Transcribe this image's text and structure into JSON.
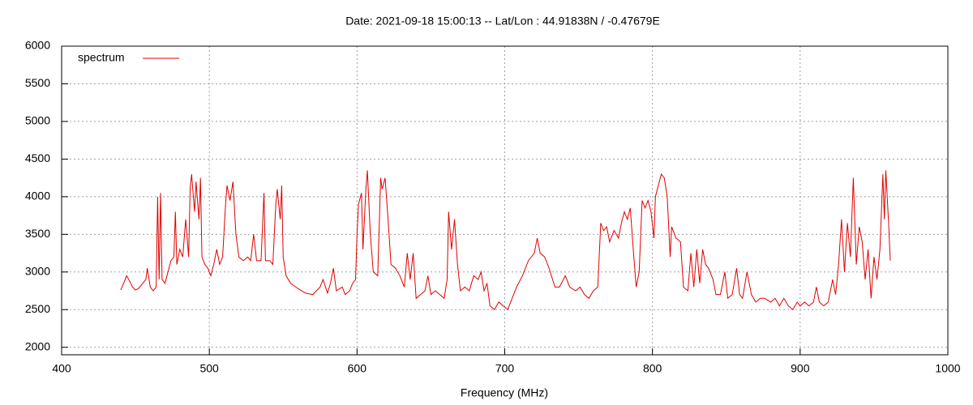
{
  "chart_data": {
    "type": "line",
    "title": "Date: 2021-09-18 15:00:13  --  Lat/Lon : 44.91838N / -0.47679E",
    "xlabel": "Frequency (MHz)",
    "xlim": [
      400,
      1000
    ],
    "xticks": [
      400,
      500,
      600,
      700,
      800,
      900,
      1000
    ],
    "ylim": [
      1900,
      6000
    ],
    "yticks": [
      2000,
      2500,
      3000,
      3500,
      4000,
      4500,
      5000,
      5500,
      6000
    ],
    "grid": true,
    "legend": "upper-left",
    "x": [
      440,
      442,
      444,
      446,
      448,
      450,
      452,
      455,
      457,
      458,
      460,
      462,
      464,
      465,
      466,
      467,
      468,
      470,
      472,
      474,
      476,
      477,
      478,
      480,
      482,
      484,
      486,
      487,
      488,
      490,
      491,
      493,
      494,
      495,
      497,
      499,
      501,
      503,
      505,
      507,
      509,
      511,
      512,
      514,
      516,
      518,
      520,
      523,
      526,
      528,
      530,
      532,
      535,
      537,
      538,
      541,
      543,
      545,
      546,
      548,
      549,
      550,
      552,
      555,
      560,
      565,
      570,
      575,
      577,
      580,
      582,
      584,
      586,
      590,
      592,
      595,
      597,
      599,
      600,
      601,
      603,
      604,
      606,
      607,
      609,
      611,
      614,
      616,
      617,
      619,
      621,
      623,
      626,
      629,
      632,
      634,
      636,
      638,
      640,
      643,
      646,
      648,
      650,
      653,
      656,
      659,
      661,
      662,
      664,
      666,
      668,
      670,
      673,
      676,
      679,
      682,
      684,
      686,
      688,
      690,
      693,
      696,
      699,
      702,
      705,
      708,
      712,
      716,
      720,
      722,
      724,
      727,
      730,
      734,
      737,
      741,
      744,
      748,
      751,
      754,
      757,
      760,
      763,
      765,
      767,
      769,
      771,
      774,
      777,
      779,
      781,
      783,
      785,
      787,
      789,
      791,
      793,
      795,
      797,
      799,
      801,
      802,
      804,
      806,
      808,
      810,
      812,
      813,
      816,
      819,
      821,
      824,
      826,
      828,
      830,
      832,
      834,
      836,
      838,
      841,
      843,
      846,
      849,
      851,
      854,
      857,
      859,
      861,
      864,
      867,
      870,
      873,
      876,
      880,
      883,
      886,
      889,
      892,
      895,
      898,
      900,
      903,
      906,
      909,
      911,
      913,
      916,
      919,
      922,
      924,
      926,
      928,
      930,
      932,
      934,
      936,
      938,
      940,
      942,
      944,
      946,
      948,
      950,
      952,
      954,
      956,
      957,
      958,
      960,
      961
    ],
    "series": [
      {
        "name": "spectrum",
        "color": "#e00000",
        "values": [
          2760,
          2850,
          2950,
          2880,
          2800,
          2760,
          2780,
          2850,
          2900,
          3050,
          2800,
          2750,
          2800,
          4000,
          2900,
          4050,
          2900,
          2850,
          3000,
          3150,
          3200,
          3800,
          3100,
          3300,
          3200,
          3700,
          3200,
          4100,
          4300,
          3800,
          4200,
          3700,
          4250,
          3200,
          3100,
          3050,
          2950,
          3100,
          3300,
          3100,
          3200,
          3900,
          4150,
          3950,
          4200,
          3500,
          3200,
          3150,
          3200,
          3150,
          3500,
          3150,
          3150,
          4050,
          3150,
          3150,
          3100,
          3900,
          4100,
          3700,
          4150,
          3200,
          2950,
          2850,
          2780,
          2720,
          2700,
          2800,
          2900,
          2720,
          2850,
          3050,
          2750,
          2800,
          2700,
          2750,
          2850,
          2900,
          3500,
          3900,
          4050,
          3300,
          4100,
          4350,
          3500,
          3000,
          2950,
          4250,
          4100,
          4250,
          3700,
          3100,
          3050,
          2950,
          2800,
          3250,
          2900,
          3250,
          2650,
          2700,
          2750,
          2950,
          2700,
          2750,
          2700,
          2650,
          2900,
          3800,
          3300,
          3700,
          3100,
          2750,
          2800,
          2750,
          2950,
          2900,
          3000,
          2750,
          2850,
          2550,
          2500,
          2600,
          2550,
          2500,
          2650,
          2800,
          2950,
          3150,
          3250,
          3450,
          3250,
          3200,
          3050,
          2800,
          2800,
          2950,
          2800,
          2750,
          2800,
          2700,
          2650,
          2750,
          2800,
          3650,
          3550,
          3600,
          3400,
          3550,
          3450,
          3650,
          3800,
          3700,
          3850,
          3300,
          2800,
          3000,
          3950,
          3850,
          3950,
          3800,
          3450,
          4000,
          4150,
          4300,
          4250,
          4000,
          3200,
          3600,
          3450,
          3400,
          2800,
          2750,
          3250,
          2800,
          3300,
          2850,
          3300,
          3100,
          3050,
          2900,
          2700,
          2700,
          3000,
          2650,
          2700,
          3050,
          2700,
          2650,
          3000,
          2700,
          2600,
          2650,
          2650,
          2600,
          2650,
          2550,
          2650,
          2550,
          2500,
          2600,
          2550,
          2600,
          2550,
          2600,
          2800,
          2600,
          2550,
          2600,
          2900,
          2700,
          3100,
          3700,
          3000,
          3650,
          3200,
          4250,
          3100,
          3600,
          3400,
          2900,
          3300,
          2650,
          3200,
          2900,
          3300,
          4300,
          3700,
          4350,
          3600,
          3150
        ]
      }
    ]
  }
}
